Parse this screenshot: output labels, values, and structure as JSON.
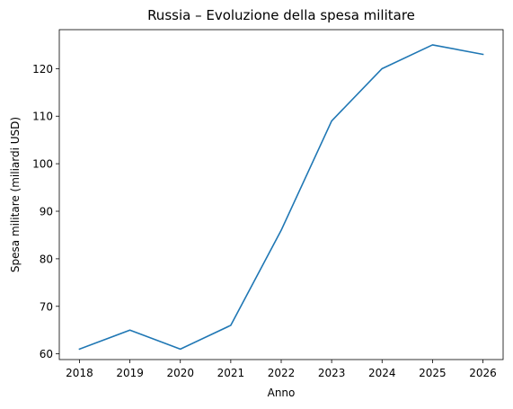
{
  "chart_data": {
    "type": "line",
    "title": "Russia – Evoluzione della spesa militare",
    "xlabel": "Anno",
    "ylabel": "Spesa militare (miliardi USD)",
    "x": [
      2018,
      2019,
      2020,
      2021,
      2022,
      2023,
      2024,
      2025,
      2026
    ],
    "series": [
      {
        "values": [
          61,
          65,
          61,
          66,
          86,
          109,
          120,
          125,
          123
        ],
        "color": "#1f77b4"
      }
    ],
    "xlim": [
      2017.6,
      2026.4
    ],
    "ylim": [
      58.8,
      128.2
    ],
    "xticks": [
      "2018",
      "2019",
      "2020",
      "2021",
      "2022",
      "2023",
      "2024",
      "2025",
      "2026"
    ],
    "yticks": [
      "60",
      "70",
      "80",
      "90",
      "100",
      "110",
      "120"
    ],
    "grid": false,
    "legend": "none"
  }
}
